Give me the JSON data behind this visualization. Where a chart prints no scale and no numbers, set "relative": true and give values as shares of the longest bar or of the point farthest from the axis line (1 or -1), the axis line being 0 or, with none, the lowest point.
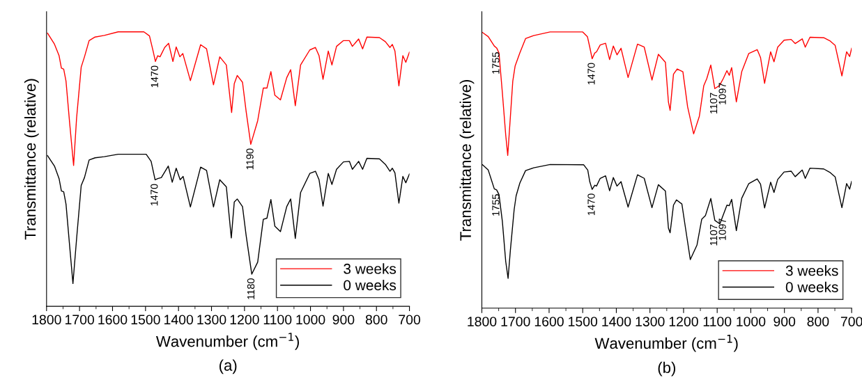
{
  "chart_data": [
    {
      "type": "line",
      "title": "(a)",
      "xlabel": "Wavenumber (cm$^{−1}$)",
      "ylabel": "Transmittance (relative)",
      "relative": true,
      "xlim": [
        1800,
        700
      ],
      "xticks": [
        1800,
        1700,
        1600,
        1500,
        1400,
        1300,
        1200,
        1100,
        1000,
        900,
        800,
        700
      ],
      "legend": "bottom right",
      "line_style": "solid",
      "marker": "none",
      "series": [
        {
          "name": "3 weeks",
          "color": "#ff0000",
          "x": [
            1797,
            1776,
            1762,
            1755,
            1748,
            1741,
            1730,
            1718,
            1709,
            1695,
            1685,
            1671,
            1653,
            1625,
            1583,
            1505,
            1488,
            1477,
            1470,
            1463,
            1456,
            1442,
            1430,
            1417,
            1407,
            1396,
            1387,
            1364,
            1333,
            1315,
            1294,
            1275,
            1255,
            1239,
            1231,
            1222,
            1206,
            1195,
            1181,
            1160,
            1143,
            1132,
            1120,
            1108,
            1091,
            1072,
            1060,
            1046,
            1030,
            1002,
            985,
            974,
            962,
            946,
            935,
            921,
            900,
            882,
            873,
            854,
            842,
            829,
            791,
            773,
            759,
            752,
            744,
            732,
            720,
            711,
            700
          ],
          "values": [
            0.995,
            0.955,
            0.913,
            0.868,
            0.864,
            0.82,
            0.668,
            0.513,
            0.685,
            0.871,
            0.909,
            0.968,
            0.981,
            0.987,
            1,
            1,
            0.985,
            0.93,
            0.892,
            0.913,
            0.909,
            0.943,
            0.958,
            0.892,
            0.945,
            0.909,
            0.921,
            0.822,
            0.953,
            0.938,
            0.807,
            0.909,
            0.879,
            0.706,
            0.811,
            0.841,
            0.816,
            0.71,
            0.59,
            0.676,
            0.795,
            0.795,
            0.855,
            0.769,
            0.752,
            0.833,
            0.862,
            0.731,
            0.879,
            0.934,
            0.943,
            0.913,
            0.827,
            0.93,
            0.879,
            0.947,
            0.968,
            0.968,
            0.947,
            0.974,
            0.938,
            0.981,
            0.979,
            0.964,
            0.943,
            0.954,
            0.93,
            0.803,
            0.913,
            0.889,
            0.926
          ]
        },
        {
          "name": "0 weeks",
          "color": "#000000",
          "x": [
            1797,
            1776,
            1762,
            1755,
            1748,
            1741,
            1730,
            1720,
            1709,
            1695,
            1685,
            1671,
            1653,
            1625,
            1583,
            1498,
            1483,
            1471,
            1463,
            1452,
            1431,
            1419,
            1407,
            1395,
            1386,
            1364,
            1333,
            1315,
            1294,
            1275,
            1255,
            1240,
            1231,
            1222,
            1206,
            1195,
            1178,
            1160,
            1143,
            1132,
            1120,
            1108,
            1091,
            1072,
            1060,
            1046,
            1030,
            1002,
            985,
            974,
            962,
            946,
            935,
            921,
            900,
            882,
            873,
            854,
            842,
            829,
            791,
            773,
            759,
            752,
            744,
            732,
            720,
            711,
            700
          ],
          "values": [
            0.549,
            0.511,
            0.465,
            0.42,
            0.417,
            0.372,
            0.22,
            0.083,
            0.245,
            0.44,
            0.469,
            0.533,
            0.541,
            0.545,
            0.554,
            0.554,
            0.528,
            0.461,
            0.465,
            0.469,
            0.511,
            0.452,
            0.503,
            0.461,
            0.473,
            0.362,
            0.507,
            0.495,
            0.362,
            0.461,
            0.435,
            0.249,
            0.38,
            0.391,
            0.363,
            0.258,
            0.117,
            0.161,
            0.317,
            0.321,
            0.389,
            0.292,
            0.272,
            0.363,
            0.391,
            0.247,
            0.414,
            0.484,
            0.492,
            0.461,
            0.365,
            0.484,
            0.444,
            0.499,
            0.526,
            0.528,
            0.499,
            0.528,
            0.499,
            0.539,
            0.537,
            0.517,
            0.492,
            0.503,
            0.486,
            0.376,
            0.473,
            0.45,
            0.482
          ]
        }
      ],
      "annotations": [
        {
          "text": "1470",
          "x": 1470,
          "y": 0.892
        },
        {
          "text": "1190",
          "x": 1181,
          "y": 0.59
        },
        {
          "text": "1470",
          "x": 1471,
          "y": 0.461
        },
        {
          "text": "1180",
          "x": 1178,
          "y": 0.117
        }
      ]
    },
    {
      "type": "line",
      "title": "(b)",
      "xlabel": "Wavenumber (cm$^{−1}$)",
      "ylabel": "Transmittance (relative)",
      "relative": true,
      "xlim": [
        1800,
        700
      ],
      "xticks": [
        1800,
        1700,
        1600,
        1500,
        1400,
        1300,
        1200,
        1100,
        1000,
        900,
        800,
        700
      ],
      "legend": "bottom right",
      "line_style": "solid",
      "marker": "none",
      "series": [
        {
          "name": "3 weeks",
          "color": "#ff0000",
          "x": [
            1798,
            1781,
            1763,
            1756,
            1749,
            1739,
            1729,
            1723,
            1716,
            1708,
            1701,
            1687,
            1670,
            1646,
            1597,
            1500,
            1486,
            1479,
            1472,
            1464,
            1459,
            1448,
            1432,
            1420,
            1409,
            1398,
            1386,
            1365,
            1337,
            1317,
            1294,
            1275,
            1254,
            1245,
            1240,
            1230,
            1219,
            1202,
            1188,
            1170,
            1153,
            1140,
            1131,
            1119,
            1107,
            1093,
            1082,
            1071,
            1064,
            1057,
            1043,
            1027,
            1006,
            981,
            971,
            959,
            941,
            931,
            920,
            901,
            880,
            868,
            847,
            838,
            824,
            783,
            765,
            749,
            729,
            715,
            706,
            700
          ],
          "values": [
            0.998,
            0.983,
            0.949,
            0.942,
            0.924,
            0.78,
            0.627,
            0.553,
            0.678,
            0.822,
            0.877,
            0.924,
            0.976,
            0.987,
            1,
            1,
            0.983,
            0.945,
            0.903,
            0.924,
            0.928,
            0.953,
            0.959,
            0.9,
            0.949,
            0.917,
            0.941,
            0.835,
            0.956,
            0.945,
            0.826,
            0.919,
            0.89,
            0.746,
            0.716,
            0.847,
            0.866,
            0.856,
            0.729,
            0.631,
            0.695,
            0.805,
            0.831,
            0.88,
            0.795,
            0.806,
            0.831,
            0.86,
            0.843,
            0.871,
            0.747,
            0.856,
            0.922,
            0.936,
            0.907,
            0.814,
            0.928,
            0.892,
            0.945,
            0.97,
            0.973,
            0.958,
            0.975,
            0.945,
            0.981,
            0.979,
            0.968,
            0.951,
            0.841,
            0.928,
            0.911,
            0.941
          ]
        },
        {
          "name": "0 weeks",
          "color": "#000000",
          "x": [
            1798,
            1781,
            1763,
            1756,
            1749,
            1739,
            1729,
            1722,
            1715,
            1704,
            1698,
            1687,
            1670,
            1646,
            1597,
            1497,
            1485,
            1479,
            1472,
            1464,
            1459,
            1448,
            1432,
            1420,
            1409,
            1398,
            1386,
            1365,
            1337,
            1317,
            1294,
            1275,
            1254,
            1245,
            1240,
            1230,
            1221,
            1205,
            1194,
            1180,
            1160,
            1146,
            1135,
            1119,
            1107,
            1092,
            1071,
            1064,
            1057,
            1043,
            1027,
            1006,
            981,
            971,
            959,
            941,
            931,
            920,
            901,
            880,
            868,
            847,
            838,
            824,
            783,
            765,
            749,
            729,
            715,
            706,
            700
          ],
          "values": [
            0.519,
            0.5,
            0.432,
            0.428,
            0.411,
            0.314,
            0.169,
            0.108,
            0.212,
            0.356,
            0.407,
            0.453,
            0.498,
            0.508,
            0.52,
            0.519,
            0.5,
            0.458,
            0.43,
            0.445,
            0.442,
            0.47,
            0.479,
            0.425,
            0.473,
            0.442,
            0.458,
            0.366,
            0.483,
            0.47,
            0.364,
            0.447,
            0.424,
            0.29,
            0.273,
            0.373,
            0.392,
            0.377,
            0.288,
            0.176,
            0.229,
            0.322,
            0.335,
            0.397,
            0.318,
            0.305,
            0.373,
            0.371,
            0.394,
            0.281,
            0.398,
            0.451,
            0.468,
            0.449,
            0.363,
            0.456,
            0.419,
            0.466,
            0.493,
            0.496,
            0.476,
            0.5,
            0.47,
            0.507,
            0.504,
            0.492,
            0.475,
            0.364,
            0.451,
            0.431,
            0.459
          ]
        }
      ],
      "annotations": [
        {
          "text": "1755",
          "x": 1756,
          "y": 0.942
        },
        {
          "text": "1470",
          "x": 1472,
          "y": 0.903
        },
        {
          "text": "1107",
          "x": 1108,
          "y": 0.795
        },
        {
          "text": "1097",
          "x": 1082,
          "y": 0.831
        },
        {
          "text": "1755",
          "x": 1756,
          "y": 0.428
        },
        {
          "text": "1470",
          "x": 1472,
          "y": 0.43
        },
        {
          "text": "1107",
          "x": 1108,
          "y": 0.318
        },
        {
          "text": "1097",
          "x": 1082,
          "y": 0.34
        }
      ]
    }
  ]
}
